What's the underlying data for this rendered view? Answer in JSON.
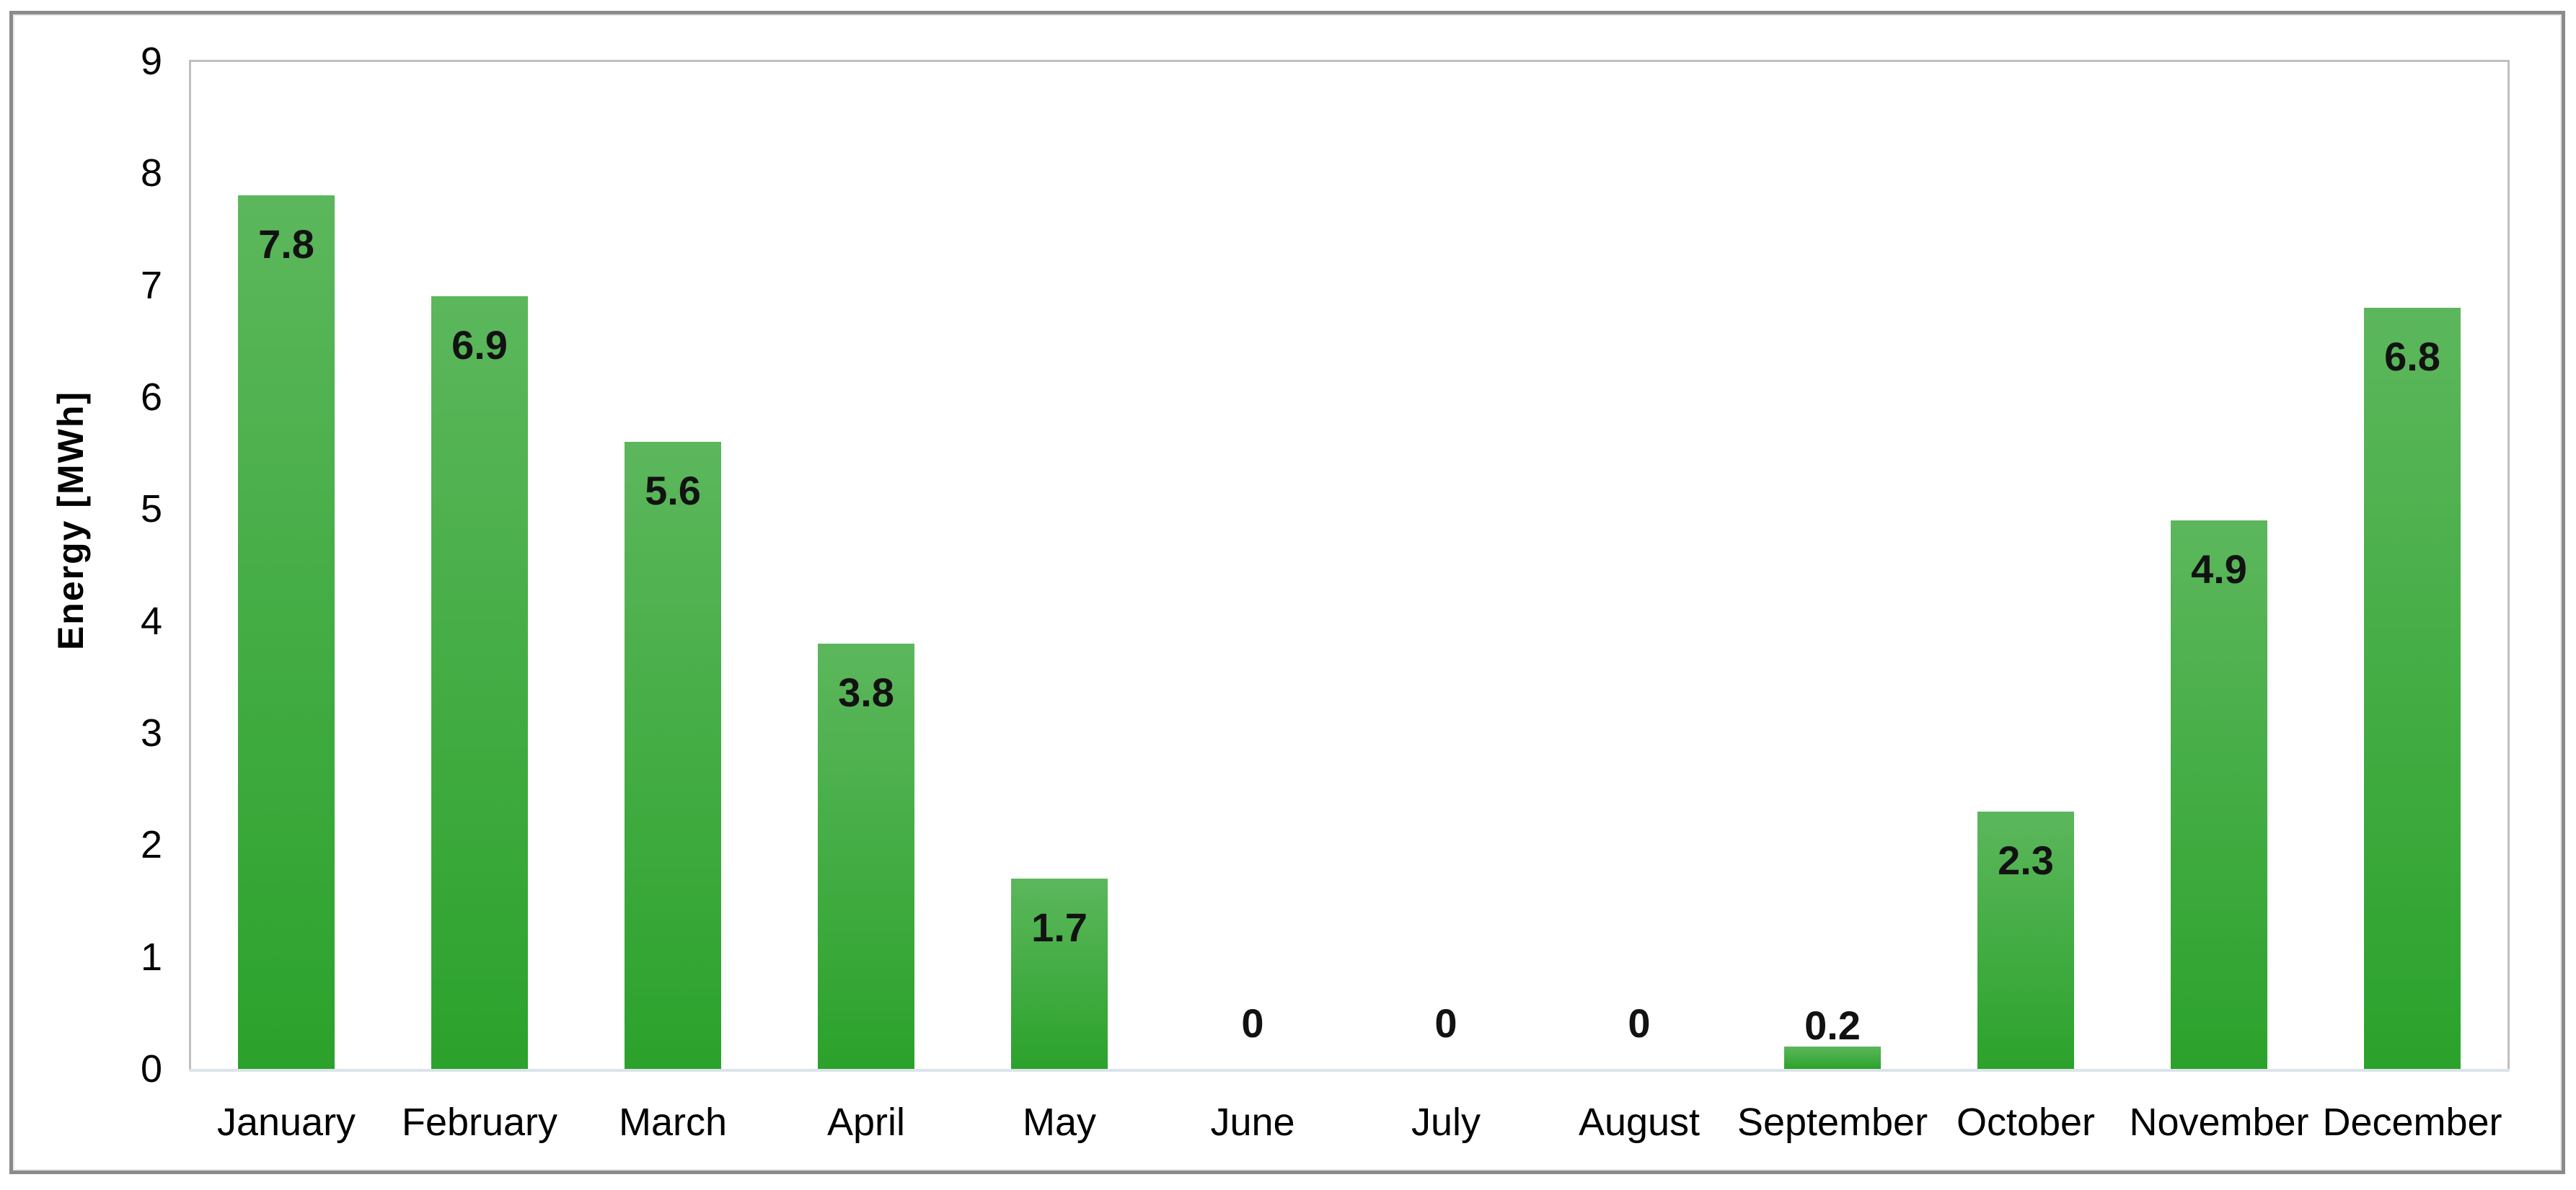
{
  "chart_data": {
    "type": "bar",
    "title": "",
    "categories": [
      "January",
      "February",
      "March",
      "April",
      "May",
      "June",
      "July",
      "August",
      "September",
      "October",
      "November",
      "December"
    ],
    "values": [
      7.8,
      6.9,
      5.6,
      3.8,
      1.7,
      0,
      0,
      0,
      0.2,
      2.3,
      4.9,
      6.8
    ],
    "value_labels": [
      "7.8",
      "6.9",
      "5.6",
      "3.8",
      "1.7",
      "0",
      "0",
      "0",
      "0.2",
      "2.3",
      "4.9",
      "6.8"
    ],
    "xlabel": "",
    "ylabel": "Energy [MWh]",
    "ylim": [
      0,
      9
    ],
    "yticks": [
      "0",
      "1",
      "2",
      "3",
      "4",
      "5",
      "6",
      "7",
      "8",
      "9"
    ],
    "grid": false,
    "legend_position": "none",
    "colors": {
      "bar_gradient_top": "#5cb75c",
      "bar_gradient_bottom": "#2ba22b",
      "plot_border": "#c2bec0",
      "x_axis_line": "#dce3eb",
      "outer_frame_border": "#8b8b8b",
      "label_text": "#121212",
      "background": "#ffffff"
    }
  }
}
